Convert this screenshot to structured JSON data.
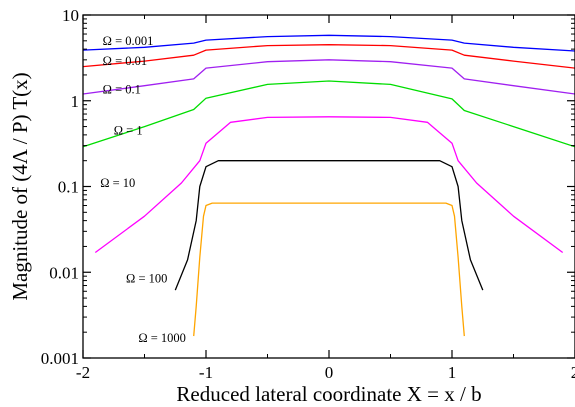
{
  "chart_data": {
    "type": "line",
    "xlabel": "Reduced lateral coordinate  X = x / b",
    "ylabel": "Magnitude  of  (4Λ / P) T(x)",
    "xlim": [
      -2,
      2
    ],
    "ylim": [
      0.001,
      10
    ],
    "yscale": "log",
    "grid": false,
    "legend": "none",
    "x_ticks": [
      -2,
      -1,
      0,
      1,
      2
    ],
    "x_tick_labels": [
      "-2",
      "-1",
      "0",
      "1",
      "2"
    ],
    "y_ticks": [
      0.001,
      0.01,
      0.1,
      1,
      10
    ],
    "y_tick_labels": [
      "0.001",
      "0.01",
      "0.1",
      "1",
      "10"
    ],
    "series": [
      {
        "name": "Ω = 0.001",
        "color": "#0000ff",
        "x": [
          -2,
          -1.5,
          -1.1,
          -1.0,
          -0.5,
          0,
          0.5,
          1.0,
          1.1,
          1.5,
          2
        ],
        "y": [
          3.9,
          4.2,
          4.7,
          5.1,
          5.6,
          5.8,
          5.6,
          5.1,
          4.7,
          4.2,
          3.8
        ]
      },
      {
        "name": "Ω = 0.01",
        "color": "#ff0000",
        "x": [
          -2,
          -1.5,
          -1.1,
          -1.0,
          -0.5,
          0,
          0.5,
          1.0,
          1.1,
          1.5,
          2
        ],
        "y": [
          2.5,
          2.9,
          3.4,
          3.9,
          4.4,
          4.5,
          4.4,
          3.9,
          3.4,
          2.9,
          2.4
        ]
      },
      {
        "name": "Ω = 0.1",
        "color": "#a020f0",
        "x": [
          -2,
          -1.5,
          -1.1,
          -1.0,
          -0.5,
          0,
          0.5,
          1.0,
          1.1,
          1.5,
          2
        ],
        "y": [
          1.2,
          1.5,
          1.8,
          2.4,
          2.85,
          3.0,
          2.85,
          2.4,
          1.8,
          1.5,
          1.2
        ]
      },
      {
        "name": "Ω = 1",
        "color": "#00dd00",
        "x": [
          -2,
          -1.5,
          -1.1,
          -1.0,
          -0.5,
          0,
          0.5,
          1.0,
          1.1,
          1.5,
          2
        ],
        "y": [
          0.29,
          0.5,
          0.79,
          1.07,
          1.55,
          1.7,
          1.55,
          1.05,
          0.77,
          0.5,
          0.29
        ]
      },
      {
        "name": "Ω = 10",
        "color": "#ff00ff",
        "x": [
          -1.9,
          -1.5,
          -1.2,
          -1.05,
          -1.0,
          -0.8,
          -0.5,
          0,
          0.5,
          0.8,
          1.0,
          1.05,
          1.2,
          1.5,
          1.9
        ],
        "y": [
          0.017,
          0.045,
          0.11,
          0.2,
          0.32,
          0.56,
          0.64,
          0.65,
          0.64,
          0.56,
          0.32,
          0.2,
          0.11,
          0.045,
          0.017
        ]
      },
      {
        "name": "Ω = 100",
        "color": "#000000",
        "x": [
          -1.25,
          -1.15,
          -1.08,
          -1.05,
          -1.0,
          -0.9,
          0,
          0.9,
          1.0,
          1.05,
          1.08,
          1.15,
          1.25
        ],
        "y": [
          0.0062,
          0.014,
          0.04,
          0.1,
          0.17,
          0.2,
          0.2,
          0.2,
          0.17,
          0.1,
          0.04,
          0.014,
          0.0062
        ]
      },
      {
        "name": "Ω = 1000",
        "color": "#ffa500",
        "x": [
          -1.1,
          -1.08,
          -1.05,
          -1.02,
          -1.0,
          -0.95,
          0,
          0.95,
          1.0,
          1.02,
          1.05,
          1.08,
          1.1
        ],
        "y": [
          0.0018,
          0.004,
          0.015,
          0.045,
          0.06,
          0.064,
          0.064,
          0.064,
          0.06,
          0.045,
          0.015,
          0.004,
          0.0018
        ]
      }
    ],
    "annotations": [
      "Ω = 0.001",
      "Ω = 0.01",
      "Ω = 0.1",
      "Ω = 1",
      "Ω = 10",
      "Ω = 100",
      "Ω = 1000"
    ]
  }
}
